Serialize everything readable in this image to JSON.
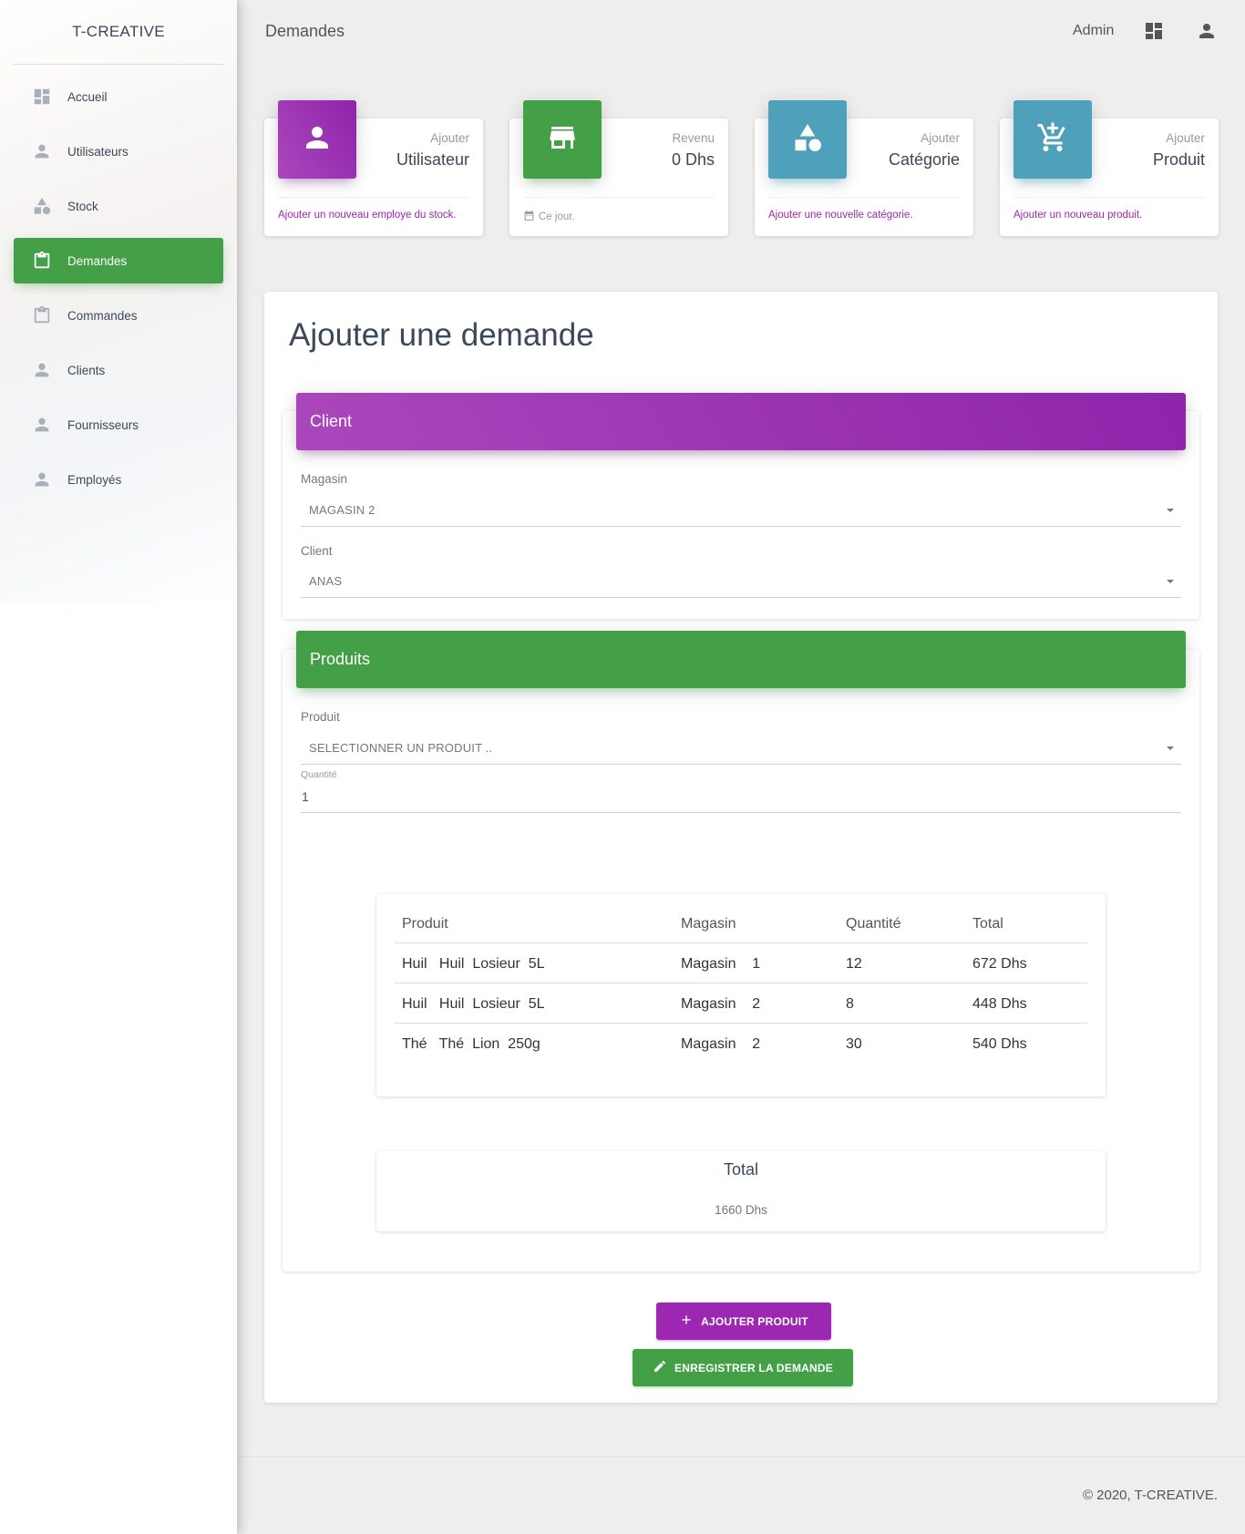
{
  "brand": "T-CREATIVE",
  "sidebar": {
    "items": [
      {
        "label": "Accueil",
        "icon": "dashboard-icon"
      },
      {
        "label": "Utilisateurs",
        "icon": "person-icon"
      },
      {
        "label": "Stock",
        "icon": "category-icon"
      },
      {
        "label": "Demandes",
        "icon": "clipboard-icon",
        "active": true
      },
      {
        "label": "Commandes",
        "icon": "clipboard-icon"
      },
      {
        "label": "Clients",
        "icon": "person-icon"
      },
      {
        "label": "Fournisseurs",
        "icon": "person-icon"
      },
      {
        "label": "Employés",
        "icon": "person-icon"
      }
    ]
  },
  "topbar": {
    "title": "Demandes",
    "user": "Admin",
    "icons": [
      "dashboard-icon",
      "person-icon"
    ]
  },
  "stats": [
    {
      "category": "Ajouter",
      "value": "Utilisateur",
      "footer": "Ajouter un nouveau employe du stock.",
      "icon": "person-icon",
      "color": "#9c27b0"
    },
    {
      "category": "Revenu",
      "value": "0 Dhs",
      "footer": "Ce jour.",
      "icon": "store-icon",
      "color": "#43a047"
    },
    {
      "category": "Ajouter",
      "value": "Catégorie",
      "footer": "Ajouter une nouvelle catégorie.",
      "icon": "category-icon",
      "color": "#4fa0bb"
    },
    {
      "category": "Ajouter",
      "value": "Produit",
      "footer": "Ajouter un nouveau produit.",
      "icon": "add-shopping-cart-icon",
      "color": "#4fa0bb"
    }
  ],
  "form": {
    "title": "Ajouter une demande",
    "client_section": {
      "header": "Client",
      "magasin_label": "Magasin",
      "magasin_value": "MAGASIN 2",
      "client_label": "Client",
      "client_value": "ANAS"
    },
    "produits_section": {
      "header": "Produits",
      "produit_label": "Produit",
      "produit_value": "SELECTIONNER UN PRODUIT ..",
      "quantite_label": "Quantité",
      "quantite_value": "1"
    },
    "table": {
      "headers": [
        "Produit",
        "Magasin",
        "Quantité",
        "Total"
      ],
      "rows": [
        [
          "Huil   Huil  Losieur  5L",
          "Magasin    1",
          "12",
          "672 Dhs"
        ],
        [
          "Huil   Huil  Losieur  5L",
          "Magasin    2",
          "8",
          "448 Dhs"
        ],
        [
          "Thé   Thé  Lion  250g",
          "Magasin    2",
          "30",
          "540 Dhs"
        ]
      ]
    },
    "total": {
      "label": "Total",
      "value": "1660 Dhs"
    },
    "add_button": "AJOUTER PRODUIT",
    "save_button": "ENREGISTRER LA DEMANDE"
  },
  "footer": "© 2020, T-CREATIVE."
}
